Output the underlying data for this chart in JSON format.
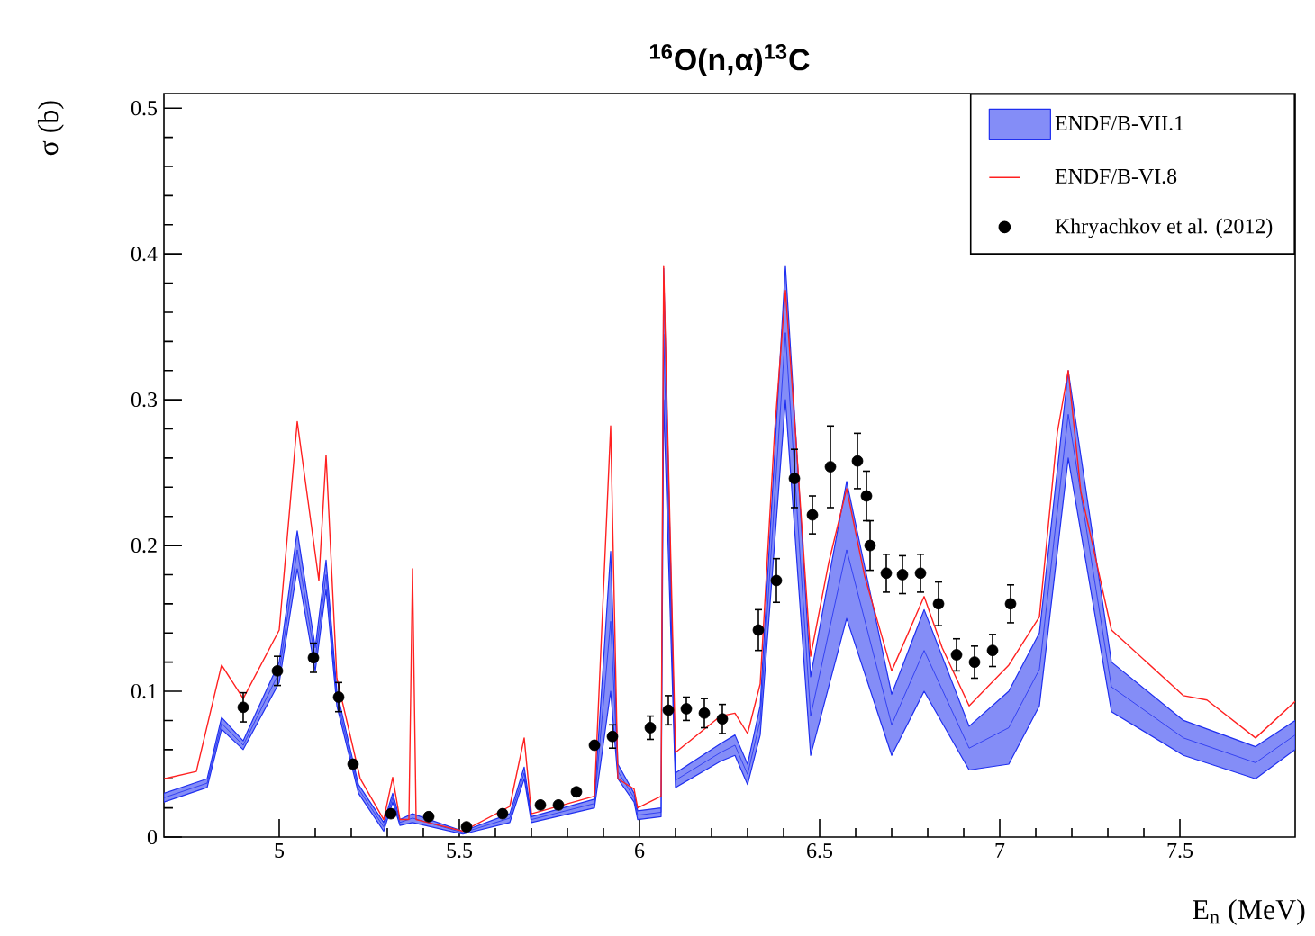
{
  "chart_data": {
    "type": "line",
    "title": "$^{16}$O(n,α)$^{13}$C",
    "xlabel": "E$_{n}$ (MeV)",
    "ylabel": "σ (b)",
    "xlim": [
      4.68,
      7.82
    ],
    "ylim": [
      0,
      0.51
    ],
    "xticks": [
      5,
      5.5,
      6,
      6.5,
      7,
      7.5
    ],
    "yticks": [
      0,
      0.1,
      0.2,
      0.3,
      0.4,
      0.5
    ],
    "legend": "top right",
    "series": [
      {
        "name": "ENDF/B-VII.1",
        "color": "#1f2ff0",
        "marker": "none",
        "x": [
          4.68,
          4.8,
          4.84,
          4.9,
          5.0,
          5.05,
          5.1,
          5.13,
          5.16,
          5.22,
          5.29,
          5.315,
          5.335,
          5.37,
          5.51,
          5.64,
          5.68,
          5.7,
          5.875,
          5.92,
          5.94,
          5.985,
          5.995,
          6.06,
          6.067,
          6.1,
          6.225,
          6.265,
          6.3,
          6.335,
          6.405,
          6.475,
          6.575,
          6.7,
          6.79,
          6.915,
          7.025,
          7.11,
          7.19,
          7.31,
          7.51,
          7.71,
          7.82
        ],
        "values": [
          0.027,
          0.037,
          0.078,
          0.063,
          0.113,
          0.197,
          0.122,
          0.18,
          0.095,
          0.033,
          0.007,
          0.027,
          0.01,
          0.013,
          0.003,
          0.013,
          0.044,
          0.012,
          0.023,
          0.148,
          0.045,
          0.027,
          0.015,
          0.017,
          0.345,
          0.039,
          0.058,
          0.063,
          0.043,
          0.08,
          0.346,
          0.083,
          0.197,
          0.077,
          0.128,
          0.061,
          0.075,
          0.115,
          0.29,
          0.103,
          0.068,
          0.051,
          0.07
        ],
        "lower": [
          0.024,
          0.034,
          0.074,
          0.06,
          0.106,
          0.184,
          0.114,
          0.17,
          0.09,
          0.03,
          0.004,
          0.024,
          0.008,
          0.01,
          0.002,
          0.01,
          0.04,
          0.01,
          0.02,
          0.1,
          0.04,
          0.024,
          0.012,
          0.014,
          0.3,
          0.034,
          0.052,
          0.056,
          0.036,
          0.07,
          0.3,
          0.056,
          0.15,
          0.056,
          0.1,
          0.046,
          0.05,
          0.09,
          0.26,
          0.086,
          0.056,
          0.04,
          0.06
        ],
        "upper": [
          0.03,
          0.04,
          0.082,
          0.066,
          0.12,
          0.21,
          0.13,
          0.19,
          0.1,
          0.036,
          0.01,
          0.03,
          0.012,
          0.016,
          0.004,
          0.016,
          0.048,
          0.014,
          0.026,
          0.196,
          0.05,
          0.03,
          0.018,
          0.02,
          0.39,
          0.044,
          0.064,
          0.07,
          0.05,
          0.09,
          0.392,
          0.11,
          0.244,
          0.098,
          0.156,
          0.076,
          0.1,
          0.14,
          0.32,
          0.12,
          0.08,
          0.062,
          0.08
        ]
      },
      {
        "name": "ENDF/B-VI.8",
        "color": "#ff2020",
        "marker": "none",
        "x": [
          4.68,
          4.77,
          4.84,
          4.9,
          5.0,
          5.05,
          5.11,
          5.13,
          5.16,
          5.225,
          5.29,
          5.315,
          5.335,
          5.36,
          5.37,
          5.38,
          5.51,
          5.64,
          5.68,
          5.7,
          5.875,
          5.92,
          5.94,
          5.985,
          5.995,
          6.06,
          6.067,
          6.1,
          6.225,
          6.265,
          6.3,
          6.335,
          6.375,
          6.405,
          6.435,
          6.475,
          6.525,
          6.575,
          6.625,
          6.7,
          6.79,
          6.84,
          6.915,
          7.025,
          7.11,
          7.16,
          7.19,
          7.225,
          7.31,
          7.51,
          7.575,
          7.71,
          7.82
        ],
        "values": [
          0.04,
          0.045,
          0.118,
          0.095,
          0.142,
          0.285,
          0.176,
          0.262,
          0.109,
          0.04,
          0.012,
          0.041,
          0.012,
          0.012,
          0.184,
          0.012,
          0.004,
          0.021,
          0.068,
          0.016,
          0.028,
          0.282,
          0.04,
          0.033,
          0.02,
          0.028,
          0.392,
          0.058,
          0.083,
          0.085,
          0.071,
          0.105,
          0.278,
          0.375,
          0.27,
          0.124,
          0.188,
          0.239,
          0.179,
          0.114,
          0.165,
          0.13,
          0.09,
          0.118,
          0.151,
          0.278,
          0.32,
          0.237,
          0.142,
          0.097,
          0.094,
          0.068,
          0.093
        ]
      },
      {
        "name": "Khryachkov et al. (2012)",
        "type": "scatter",
        "color": "#000000",
        "marker": "circle",
        "x": [
          4.9,
          4.995,
          5.095,
          5.165,
          5.205,
          5.31,
          5.415,
          5.52,
          5.62,
          5.725,
          5.775,
          5.825,
          5.875,
          5.925,
          6.03,
          6.08,
          6.13,
          6.18,
          6.23,
          6.33,
          6.38,
          6.43,
          6.48,
          6.53,
          6.605,
          6.63,
          6.64,
          6.685,
          6.73,
          6.78,
          6.83,
          6.88,
          6.93,
          6.98,
          7.03
        ],
        "values": [
          0.089,
          0.114,
          0.123,
          0.096,
          0.05,
          0.016,
          0.014,
          0.007,
          0.016,
          0.022,
          0.022,
          0.031,
          0.063,
          0.069,
          0.075,
          0.087,
          0.088,
          0.085,
          0.081,
          0.142,
          0.176,
          0.246,
          0.221,
          0.254,
          0.258,
          0.234,
          0.2,
          0.181,
          0.18,
          0.181,
          0.16,
          0.125,
          0.12,
          0.128,
          0.16
        ],
        "errors": [
          0.01,
          0.01,
          0.01,
          0.01,
          null,
          null,
          null,
          null,
          null,
          null,
          null,
          null,
          null,
          0.008,
          0.008,
          0.01,
          0.008,
          0.01,
          0.01,
          0.014,
          0.015,
          0.02,
          0.013,
          0.028,
          0.019,
          0.017,
          0.017,
          0.013,
          0.013,
          0.013,
          0.015,
          0.011,
          0.011,
          0.011,
          0.013
        ]
      }
    ]
  }
}
